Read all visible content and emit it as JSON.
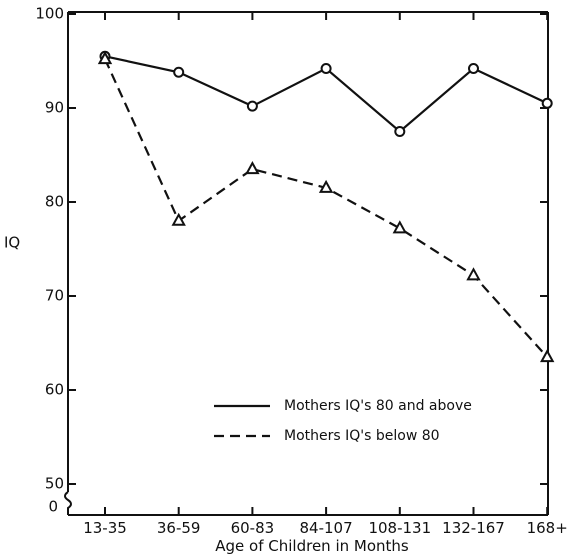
{
  "chart_data": {
    "type": "line",
    "title": "",
    "xlabel": "Age of Children in Months",
    "ylabel": "IQ",
    "categories": [
      "13-35",
      "36-59",
      "60-83",
      "84-107",
      "108-131",
      "132-167",
      "168+"
    ],
    "y_ticks": [
      "100",
      "90",
      "80",
      "70",
      "60",
      "50"
    ],
    "y_zero_label": "0",
    "ylim": [
      50,
      100
    ],
    "y_axis_break": true,
    "grid": false,
    "legend_position": "bottom-right",
    "series": [
      {
        "name": "Mothers IQ's 80 and above",
        "line_style": "solid",
        "marker": "circle",
        "values": [
          95.5,
          93.8,
          90.2,
          94.2,
          87.5,
          94.2,
          90.5
        ]
      },
      {
        "name": "Mothers IQ's below 80",
        "line_style": "dashed",
        "marker": "triangle",
        "values": [
          95.2,
          78.0,
          83.5,
          81.5,
          77.2,
          72.2,
          63.5
        ]
      }
    ]
  }
}
